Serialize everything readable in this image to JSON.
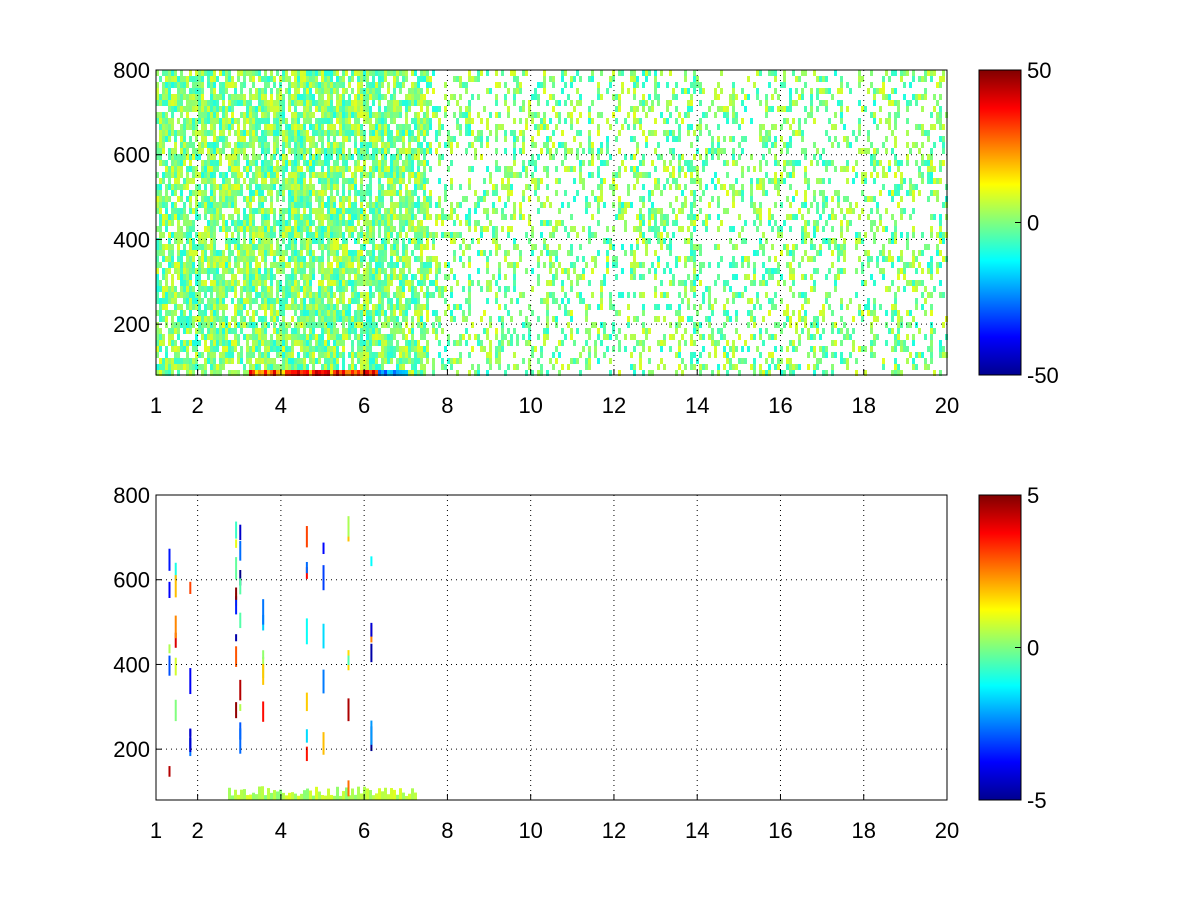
{
  "chart_data": [
    {
      "type": "heatmap",
      "title": "",
      "xlabel": "",
      "ylabel": "",
      "xlim": [
        1,
        20
      ],
      "ylim": [
        80,
        800
      ],
      "x_ticks": [
        1,
        2,
        4,
        6,
        8,
        10,
        12,
        14,
        16,
        18,
        20
      ],
      "x_tick_labels": [
        "1",
        "2",
        "4",
        "6",
        "8",
        "10",
        "12",
        "14",
        "16",
        "18",
        "20"
      ],
      "y_ticks": [
        200,
        400,
        600,
        800
      ],
      "y_tick_labels": [
        "200",
        "400",
        "600",
        "800"
      ],
      "grid": true,
      "colormap": "jet",
      "clim": [
        -50,
        50
      ],
      "colorbar_ticks": [
        -50,
        0,
        50
      ],
      "colorbar_tick_labels": [
        "-50",
        "0",
        "50"
      ],
      "description_values": {
        "background_value_range": [
          -10,
          10
        ],
        "high_band": {
          "x_range": [
            3.2,
            6.3
          ],
          "y_range": [
            80,
            100
          ],
          "value_range": [
            15,
            45
          ]
        },
        "low_band": {
          "x_range": [
            6.3,
            7.0
          ],
          "y_range": [
            80,
            100
          ],
          "value_range": [
            -30,
            -15
          ]
        }
      }
    },
    {
      "type": "heatmap",
      "title": "",
      "xlabel": "",
      "ylabel": "",
      "xlim": [
        1,
        20
      ],
      "ylim": [
        80,
        800
      ],
      "x_ticks": [
        1,
        2,
        4,
        6,
        8,
        10,
        12,
        14,
        16,
        18,
        20
      ],
      "x_tick_labels": [
        "1",
        "2",
        "4",
        "6",
        "8",
        "10",
        "12",
        "14",
        "16",
        "18",
        "20"
      ],
      "y_ticks": [
        200,
        400,
        600,
        800
      ],
      "y_tick_labels": [
        "200",
        "400",
        "600",
        "800"
      ],
      "grid": true,
      "colormap": "jet",
      "clim": [
        -5,
        5
      ],
      "colorbar_ticks": [
        -5,
        0,
        5
      ],
      "colorbar_tick_labels": [
        "-5",
        "0",
        "5"
      ],
      "description_values": {
        "bottom_band": {
          "x_range": [
            2.7,
            7.2
          ],
          "y_range": [
            80,
            100
          ],
          "value_range": [
            0,
            1
          ]
        }
      }
    }
  ]
}
